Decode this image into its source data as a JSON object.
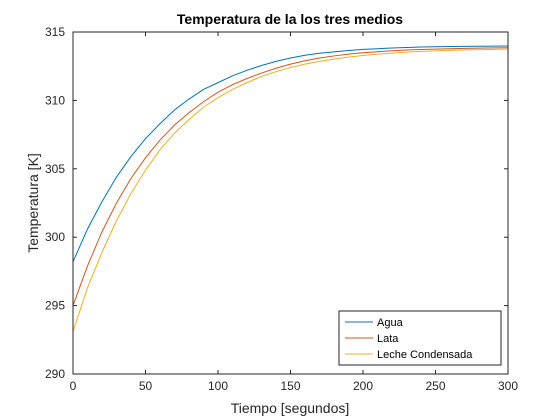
{
  "chart_data": {
    "type": "line",
    "title": "Temperatura de la los tres medios",
    "xlabel": "Tiempo [segundos]",
    "ylabel": "Temperatura [K]",
    "xlim": [
      0,
      300
    ],
    "ylim": [
      290,
      315
    ],
    "xticks": [
      0,
      50,
      100,
      150,
      200,
      250,
      300
    ],
    "yticks": [
      290,
      295,
      300,
      305,
      310,
      315
    ],
    "grid": false,
    "legend_position": "bottom-right",
    "series": [
      {
        "name": "Agua",
        "color": "#0072BD",
        "x": [
          0,
          10,
          20,
          30,
          40,
          50,
          60,
          70,
          80,
          90,
          100,
          110,
          120,
          130,
          140,
          150,
          160,
          170,
          180,
          190,
          200,
          210,
          220,
          230,
          240,
          250,
          260,
          270,
          280,
          290,
          300
        ],
        "values": [
          298.2,
          300.6,
          302.6,
          304.4,
          305.9,
          307.2,
          308.3,
          309.3,
          310.1,
          310.8,
          311.3,
          311.8,
          312.2,
          312.55,
          312.85,
          313.1,
          313.3,
          313.45,
          313.55,
          313.65,
          313.73,
          313.78,
          313.83,
          313.87,
          313.9,
          313.92,
          313.94,
          313.95,
          313.96,
          313.97,
          313.98
        ]
      },
      {
        "name": "Lata",
        "color": "#D95319",
        "x": [
          0,
          10,
          20,
          30,
          40,
          50,
          60,
          70,
          80,
          90,
          100,
          110,
          120,
          130,
          140,
          150,
          160,
          170,
          180,
          190,
          200,
          210,
          220,
          230,
          240,
          250,
          260,
          270,
          280,
          290,
          300
        ],
        "values": [
          295.0,
          297.9,
          300.4,
          302.5,
          304.3,
          305.8,
          307.1,
          308.2,
          309.1,
          309.9,
          310.6,
          311.15,
          311.6,
          312.0,
          312.35,
          312.65,
          312.9,
          313.1,
          313.25,
          313.38,
          313.48,
          313.56,
          313.63,
          313.68,
          313.72,
          313.75,
          313.78,
          313.8,
          313.82,
          313.84,
          313.85
        ]
      },
      {
        "name": "Leche Condensada",
        "color": "#EDB120",
        "x": [
          0,
          10,
          20,
          30,
          40,
          50,
          60,
          70,
          80,
          90,
          100,
          110,
          120,
          130,
          140,
          150,
          160,
          170,
          180,
          190,
          200,
          210,
          220,
          230,
          240,
          250,
          260,
          270,
          280,
          290,
          300
        ],
        "values": [
          293.1,
          296.3,
          298.9,
          301.2,
          303.2,
          304.9,
          306.4,
          307.6,
          308.6,
          309.5,
          310.2,
          310.8,
          311.3,
          311.75,
          312.1,
          312.4,
          312.65,
          312.85,
          313.02,
          313.16,
          313.28,
          313.38,
          313.46,
          313.53,
          313.58,
          313.62,
          313.66,
          313.69,
          313.71,
          313.73,
          313.75
        ]
      }
    ]
  }
}
